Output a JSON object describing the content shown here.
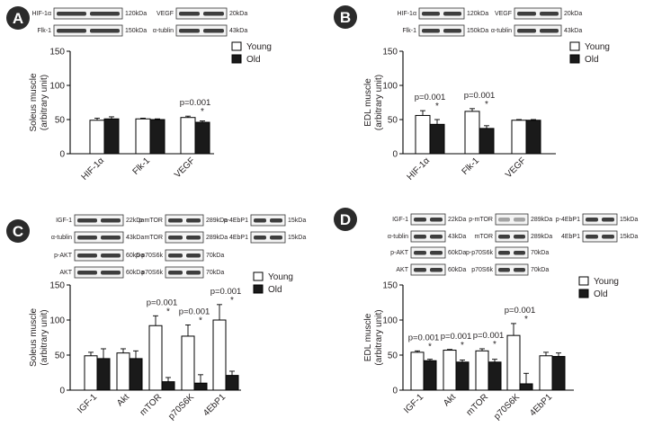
{
  "colors": {
    "young": "#ffffff",
    "old": "#1a1a1a",
    "ink": "#231f20",
    "badge": "#2b2b2b"
  },
  "legend": {
    "young": "Young",
    "old": "Old"
  },
  "panels": [
    {
      "id": "A",
      "blots": [
        {
          "items": [
            {
              "label": "HIF-1α",
              "size": "120kDa"
            },
            {
              "label": "Flk-1",
              "size": "150kDa"
            }
          ]
        },
        {
          "items": [
            {
              "label": "VEGF",
              "size": "20kDa"
            },
            {
              "label": "α-tublin",
              "size": "43kDa"
            }
          ]
        }
      ]
    },
    {
      "id": "B",
      "blots": [
        {
          "items": [
            {
              "label": "HIF-1α",
              "size": "120kDa"
            },
            {
              "label": "Flk-1",
              "size": "150kDa"
            }
          ]
        },
        {
          "items": [
            {
              "label": "VEGF",
              "size": "20kDa"
            },
            {
              "label": "α-tublin",
              "size": "43kDa"
            }
          ]
        }
      ]
    },
    {
      "id": "C",
      "blots": [
        {
          "items": [
            {
              "label": "IGF-1",
              "size": "22kDa"
            },
            {
              "label": "α-tublin",
              "size": "43kDa"
            }
          ]
        },
        {
          "items": [
            {
              "label": "p-mTOR",
              "size": "289kDa"
            },
            {
              "label": "mTOR",
              "size": "289kDa"
            }
          ]
        },
        {
          "items": [
            {
              "label": "p-4EbP1",
              "size": "15kDa"
            },
            {
              "label": "4EbP1",
              "size": "15kDa"
            }
          ]
        },
        {
          "items": [
            {
              "label": "p-AKT",
              "size": "60kDa"
            },
            {
              "label": "AKT",
              "size": "60kDa"
            }
          ]
        },
        {
          "items": [
            {
              "label": "p-p70S6k",
              "size": "70kDa"
            },
            {
              "label": "p70S6k",
              "size": "70kDa"
            }
          ]
        }
      ]
    },
    {
      "id": "D",
      "blots": [
        {
          "items": [
            {
              "label": "IGF-1",
              "size": "22kDa"
            },
            {
              "label": "α-tublin",
              "size": "43kDa"
            }
          ]
        },
        {
          "items": [
            {
              "label": "p-mTOR",
              "size": "289kDa"
            },
            {
              "label": "mTOR",
              "size": "289kDa"
            }
          ]
        },
        {
          "items": [
            {
              "label": "p-4EbP1",
              "size": "15kDa"
            },
            {
              "label": "4EbP1",
              "size": "15kDa"
            }
          ]
        },
        {
          "items": [
            {
              "label": "p-AKT",
              "size": "60kDa"
            },
            {
              "label": "AKT",
              "size": "60kDa"
            }
          ]
        },
        {
          "items": [
            {
              "label": "p-p70S6k",
              "size": "70kDa"
            },
            {
              "label": "p70S6k",
              "size": "70kDa"
            }
          ]
        }
      ]
    }
  ],
  "chart_data": [
    {
      "panel": "A",
      "type": "bar",
      "ylabel": "Soleus muscle\n(arbitrary unit)",
      "ylim": [
        0,
        150
      ],
      "yticks": [
        0,
        50,
        100,
        150
      ],
      "categories": [
        "HIF-1α",
        "Flk-1",
        "VEGF"
      ],
      "series": [
        {
          "name": "Young",
          "values": [
            49,
            51,
            53
          ],
          "errors": [
            3,
            1,
            2
          ]
        },
        {
          "name": "Old",
          "values": [
            51,
            50,
            46
          ],
          "errors": [
            3,
            1,
            2
          ]
        }
      ],
      "annotations": [
        {
          "category": "VEGF",
          "text": "p=0.001",
          "star": "*"
        }
      ],
      "legend": "top-right"
    },
    {
      "panel": "B",
      "type": "bar",
      "ylabel": "EDL muscle\n(arbitrary unit)",
      "ylim": [
        0,
        150
      ],
      "yticks": [
        0,
        50,
        100,
        150
      ],
      "categories": [
        "HIF-1α",
        "Flk-1",
        "VEGF"
      ],
      "series": [
        {
          "name": "Young",
          "values": [
            56,
            62,
            49
          ],
          "errors": [
            7,
            4,
            1
          ]
        },
        {
          "name": "Old",
          "values": [
            43,
            37,
            49
          ],
          "errors": [
            7,
            4,
            1
          ]
        }
      ],
      "annotations": [
        {
          "category": "HIF-1α",
          "text": "p=0.001",
          "star": "*"
        },
        {
          "category": "Flk-1",
          "text": "p=0.001",
          "star": "*"
        }
      ],
      "legend": "top-right"
    },
    {
      "panel": "C",
      "type": "bar",
      "ylabel": "Soleus muscle\n(arbitrary unit)",
      "ylim": [
        0,
        150
      ],
      "yticks": [
        0,
        50,
        100,
        150
      ],
      "categories": [
        "IGF-1",
        "Akt",
        "mTOR",
        "p70S6K",
        "4EbP1"
      ],
      "series": [
        {
          "name": "Young",
          "values": [
            49,
            53,
            92,
            77,
            100
          ],
          "errors": [
            5,
            6,
            14,
            16,
            22
          ]
        },
        {
          "name": "Old",
          "values": [
            45,
            45,
            12,
            10,
            21
          ],
          "errors": [
            14,
            11,
            6,
            12,
            6
          ]
        }
      ],
      "annotations": [
        {
          "category": "mTOR",
          "text": "p=0.001",
          "star": "*"
        },
        {
          "category": "p70S6K",
          "text": "p=0.001",
          "star": "*"
        },
        {
          "category": "4EbP1",
          "text": "p=0.001",
          "star": "*"
        }
      ],
      "legend": "top-right"
    },
    {
      "panel": "D",
      "type": "bar",
      "ylabel": "EDL muscle\n(arbitrary unit)",
      "ylim": [
        0,
        150
      ],
      "yticks": [
        0,
        50,
        100,
        150
      ],
      "categories": [
        "IGF-1",
        "Akt",
        "mTOR",
        "p70S6K",
        "4EbP1"
      ],
      "series": [
        {
          "name": "Young",
          "values": [
            54,
            57,
            56,
            78,
            49
          ],
          "errors": [
            2,
            1,
            3,
            17,
            5
          ]
        },
        {
          "name": "Old",
          "values": [
            42,
            40,
            40,
            9,
            48
          ],
          "errors": [
            2,
            3,
            4,
            15,
            5
          ]
        }
      ],
      "annotations": [
        {
          "category": "IGF-1",
          "text": "p=0.001",
          "star": "*"
        },
        {
          "category": "Akt",
          "text": "p=0.001",
          "star": "*"
        },
        {
          "category": "mTOR",
          "text": "p=0.001",
          "star": "*"
        },
        {
          "category": "p70S6K",
          "text": "p=0.001",
          "star": "*"
        }
      ],
      "legend": "top-right"
    }
  ]
}
